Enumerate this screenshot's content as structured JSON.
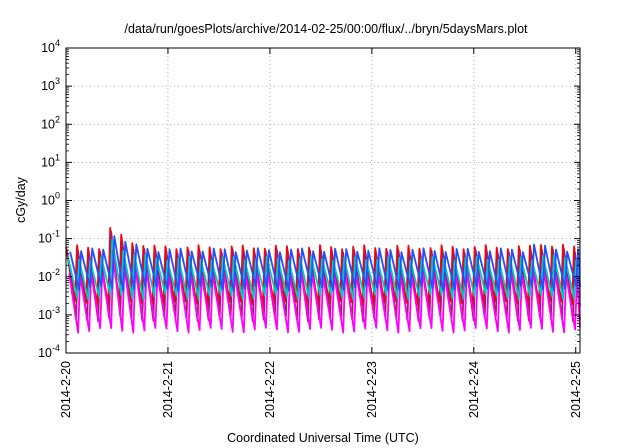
{
  "chart_data": {
    "type": "line",
    "title": "/data/run/goesPlots/archive/2014-02-25/00:00/flux/../bryn/5daysMars.plot",
    "xlabel": "Coordinated Universal Time (UTC)",
    "ylabel": "cGy/day",
    "y_scale": "log",
    "grid": true,
    "x_range": [
      "2014-2-20",
      "2014-2-25 01:00"
    ],
    "y_range": [
      0.0001,
      10000
    ],
    "x_ticks": [
      "2014-2-20",
      "2014-2-21",
      "2014-2-22",
      "2014-2-23",
      "2014-2-24",
      "2014-2-25"
    ],
    "y_ticks": [
      {
        "value": 0.0001,
        "base": "10",
        "exp": "-4"
      },
      {
        "value": 0.001,
        "base": "10",
        "exp": "-3"
      },
      {
        "value": 0.01,
        "base": "10",
        "exp": "-2"
      },
      {
        "value": 0.1,
        "base": "10",
        "exp": "-1"
      },
      {
        "value": 1,
        "base": "10",
        "exp": "0"
      },
      {
        "value": 10,
        "base": "10",
        "exp": "1"
      },
      {
        "value": 100,
        "base": "10",
        "exp": "2"
      },
      {
        "value": 1000,
        "base": "10",
        "exp": "3"
      },
      {
        "value": 10000,
        "base": "10",
        "exp": "4"
      }
    ],
    "orbit_period_hours": 2.6,
    "series": [
      {
        "color": "#ff0000",
        "peak": 0.06,
        "trough": 0.002
      },
      {
        "color": "#a0205a",
        "peak": 0.045,
        "trough": 0.0008
      },
      {
        "color": "#00c8c8",
        "peak": 0.03,
        "trough": 0.003
      },
      {
        "color": "#ff00ff",
        "peak": 0.012,
        "trough": 0.0004
      },
      {
        "color": "#2050ff",
        "peak": 0.05,
        "trough": 0.005
      }
    ],
    "events": [
      {
        "day_offset": 0.45,
        "peak_factor": 3.0
      },
      {
        "day_offset": 4.6,
        "peak_factor": 1.4
      }
    ]
  }
}
